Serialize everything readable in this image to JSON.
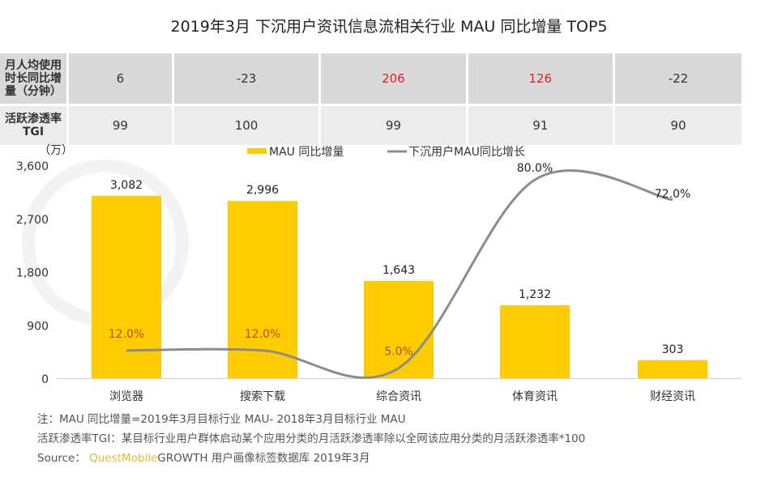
{
  "title": "2019年3月 下沉用户资讯信息流相关行业 MAU 同比增量 TOP5",
  "table": {
    "rows": [
      {
        "label": "月人均使用时长同比增量（分钟）",
        "values": [
          "6",
          "-23",
          "206",
          "126",
          "-22"
        ],
        "highlight": [
          false,
          false,
          true,
          true,
          false
        ]
      },
      {
        "label": "活跃渗透率TGI",
        "values": [
          "99",
          "100",
          "99",
          "91",
          "90"
        ]
      }
    ],
    "highlight_color": "#e02020"
  },
  "chart_data": {
    "type": "bar+line",
    "categories": [
      "浏览器",
      "搜索下载",
      "综合资讯",
      "体育资讯",
      "财经资讯"
    ],
    "unit_label": "（万）",
    "ylim": [
      0,
      3600
    ],
    "yticks": [
      "0",
      "900",
      "1,800",
      "2,700",
      "3,600"
    ],
    "ytick_values": [
      0,
      900,
      1800,
      2700,
      3600
    ],
    "series": [
      {
        "name": "MAU 同比增量",
        "type": "bar",
        "color": "#ffcc00",
        "values": [
          3082,
          2996,
          1643,
          1232,
          303
        ],
        "labels": [
          "3,082",
          "2,996",
          "1,643",
          "1,232",
          "303"
        ]
      },
      {
        "name": "下沉用户MAU同比增长",
        "type": "line",
        "color": "#8c8c8c",
        "smooth": true,
        "axis": "secondary-hidden",
        "values": [
          12.0,
          12.0,
          5.0,
          80.0,
          72.0
        ],
        "labels": [
          "12.0%",
          "12.0%",
          "5.0%",
          "80.0%",
          "72.0%"
        ]
      }
    ],
    "legend": "top-center",
    "grid": false
  },
  "notes": {
    "note1": "注：MAU 同比增量=2019年3月目标行业 MAU- 2018年3月目标行业 MAU",
    "note2": "活跃渗透率TGI：某目标行业用户群体启动某个应用分类的月活跃渗透率除以全网该应用分类的月活跃渗透率*100",
    "source_prefix": "Source：",
    "source_brand": "QuestMobile",
    "source_rest": "GROWTH 用户画像标签数据库 2019年3月"
  }
}
